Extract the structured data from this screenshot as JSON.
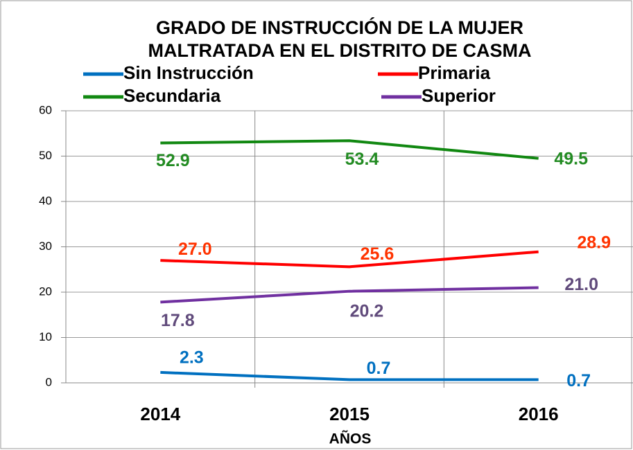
{
  "chart_data": {
    "type": "line",
    "title": [
      "GRADO DE INSTRUCCIÓN DE LA MUJER",
      "MALTRATADA EN EL DISTRITO DE CASMA"
    ],
    "x_label": "AÑOS",
    "categories": [
      "2014",
      "2015",
      "2016"
    ],
    "series": [
      {
        "name": "Sin Instrucción",
        "color": "#0070c0",
        "label_color": "#0070c0",
        "values": [
          2.3,
          0.7,
          0.7
        ],
        "value_labels": [
          "2.3",
          "0.7",
          "0.7"
        ]
      },
      {
        "name": "Primaria",
        "color": "#ff0000",
        "label_color": "#ff3300",
        "values": [
          27.0,
          25.6,
          28.9
        ],
        "value_labels": [
          "27.0",
          "25.6",
          "28.9"
        ]
      },
      {
        "name": "Secundaria",
        "color": "#118811",
        "label_color": "#228b22",
        "values": [
          52.9,
          53.4,
          49.5
        ],
        "value_labels": [
          "52.9",
          "53.4",
          "49.5"
        ]
      },
      {
        "name": "Superior",
        "color": "#7030a0",
        "label_color": "#604a7b",
        "values": [
          17.8,
          20.2,
          21.0
        ],
        "value_labels": [
          "17.8",
          "20.2",
          "21.0"
        ]
      }
    ],
    "ylim": [
      0,
      60
    ],
    "yticks": [
      0,
      10,
      20,
      30,
      40,
      50,
      60
    ],
    "grid": true
  }
}
